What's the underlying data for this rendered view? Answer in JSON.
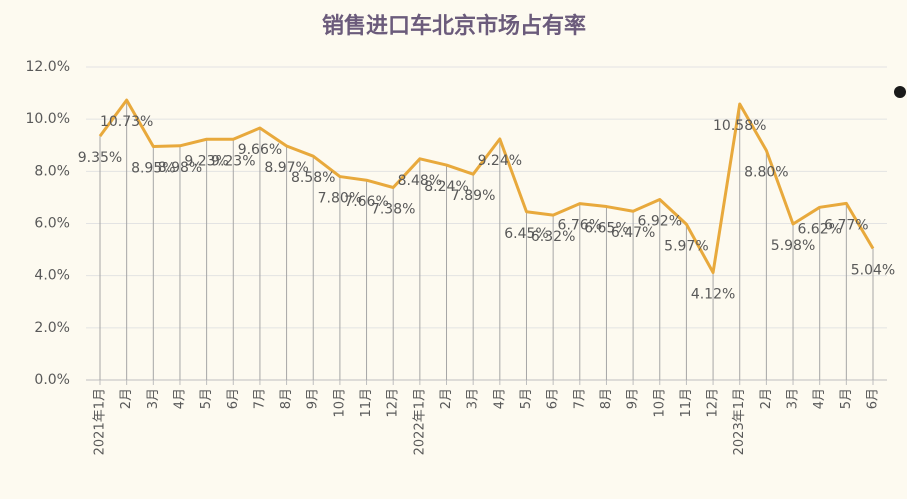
{
  "chart_data": {
    "type": "line",
    "title": "销售进口车北京市场占有率",
    "categories": [
      "2021年1月",
      "2月",
      "3月",
      "4月",
      "5月",
      "6月",
      "7月",
      "8月",
      "9月",
      "10月",
      "11月",
      "12月",
      "2022年1月",
      "2月",
      "3月",
      "4月",
      "5月",
      "6月",
      "7月",
      "8月",
      "9月",
      "10月",
      "11月",
      "12月",
      "2023年1月",
      "2月",
      "3月",
      "4月",
      "5月",
      "6月"
    ],
    "series": [
      {
        "color": "#e8a93c",
        "values": [
          9.35,
          10.73,
          8.95,
          8.98,
          9.23,
          9.23,
          9.66,
          8.97,
          8.58,
          7.8,
          7.66,
          7.38,
          8.48,
          8.24,
          7.89,
          9.24,
          6.45,
          6.32,
          6.76,
          6.65,
          6.47,
          6.92,
          5.97,
          4.12,
          10.58,
          8.8,
          5.98,
          6.62,
          6.77,
          5.04
        ],
        "value_labels": [
          "9.35%",
          "10.73%",
          "8.95%",
          "8.98%",
          "9.23%",
          "9.23%",
          "9.66%",
          "8.97%",
          "8.58%",
          "7.80%",
          "7.66%",
          "7.38%",
          "8.48%",
          "8.24%",
          "7.89%",
          "9.24%",
          "6.45%",
          "6.32%",
          "6.76%",
          "6.65%",
          "6.47%",
          "6.92%",
          "5.97%",
          "4.12%",
          "10.58%",
          "8.80%",
          "5.98%",
          "6.62%",
          "6.77%",
          "5.04%"
        ]
      }
    ],
    "ylim": [
      0,
      12
    ],
    "yticks": [
      {
        "value": 0,
        "label": "0.0%"
      },
      {
        "value": 2,
        "label": "2.0%"
      },
      {
        "value": 4,
        "label": "4.0%"
      },
      {
        "value": 6,
        "label": "6.0%"
      },
      {
        "value": 8,
        "label": "8.0%"
      },
      {
        "value": 10,
        "label": "10.0%"
      },
      {
        "value": 12,
        "label": "12.0%"
      }
    ],
    "grid": true,
    "drop_lines": true
  }
}
